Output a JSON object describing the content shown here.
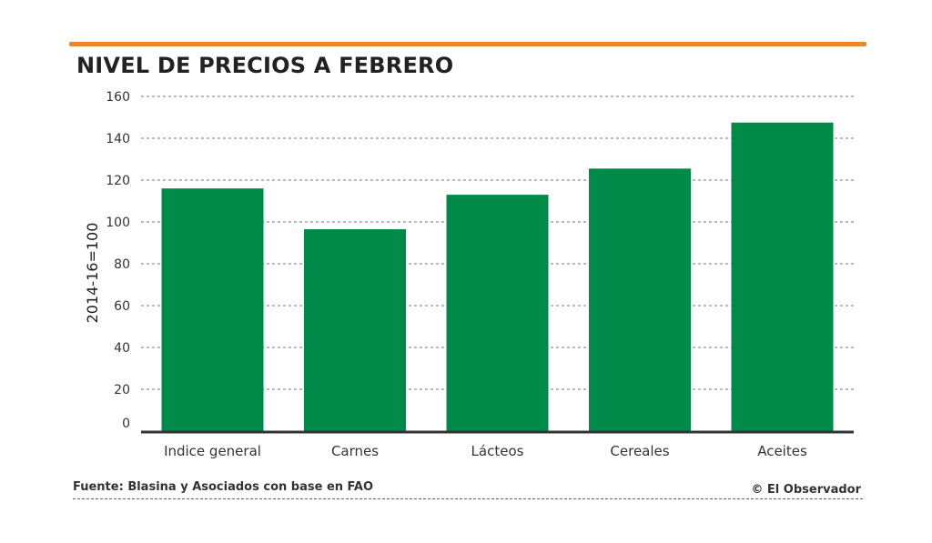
{
  "colors": {
    "accent": "#e8872e",
    "bar": "#008a4a",
    "axis": "#333333",
    "grid": "#7a7a7a"
  },
  "chart_data": {
    "type": "bar",
    "title": "NIVEL DE PRECIOS A FEBRERO",
    "xlabel": "",
    "ylabel": "2014-16=100",
    "categories": [
      "Indice general",
      "Carnes",
      "Lácteos",
      "Cereales",
      "Aceites"
    ],
    "values": [
      116,
      96.5,
      113,
      125.5,
      147.5
    ],
    "ylim": [
      0,
      160
    ],
    "yticks": [
      "0",
      "20",
      "40",
      "60",
      "80",
      "100",
      "120",
      "140",
      "160"
    ],
    "grid": true,
    "legend": "none"
  },
  "footer": {
    "source": "Fuente: Blasina y Asociados con base en FAO",
    "credit": "© El Observador"
  }
}
